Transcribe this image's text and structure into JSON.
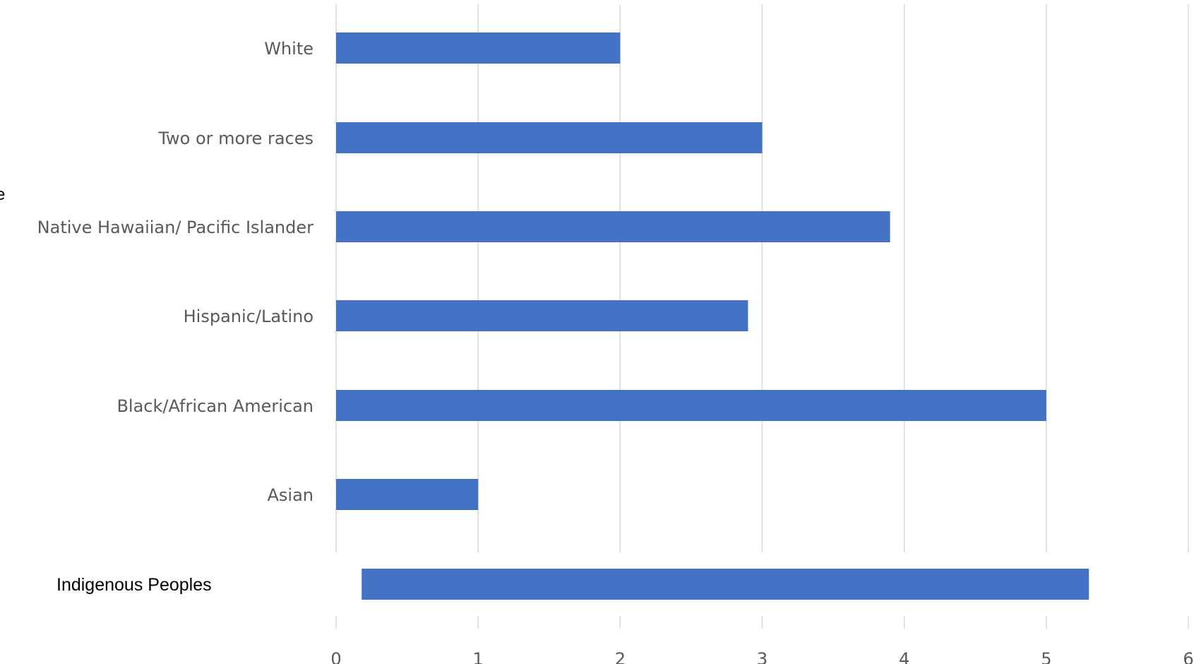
{
  "chart_data": {
    "type": "bar",
    "orientation": "horizontal",
    "categories": [
      "White",
      "Two or more races",
      "Native Hawaiian/ Pacific Islander",
      "Hispanic/Latino",
      "Black/African American",
      "Asian",
      "Indigenous Peoples"
    ],
    "series": [
      {
        "values": [
          2,
          3,
          3.9,
          2.9,
          5,
          1,
          5.3
        ],
        "color": "#4472c4"
      }
    ],
    "special_ranges": {
      "Indigenous Peoples": [
        0.18,
        5.3
      ]
    },
    "xlim": [
      0,
      6
    ],
    "xticks": [
      "0",
      "1",
      "2",
      "3",
      "4",
      "5",
      "6"
    ],
    "grid": "vertical",
    "title": "",
    "xlabel": "",
    "ylabel": ""
  },
  "stray_glyph": "e"
}
